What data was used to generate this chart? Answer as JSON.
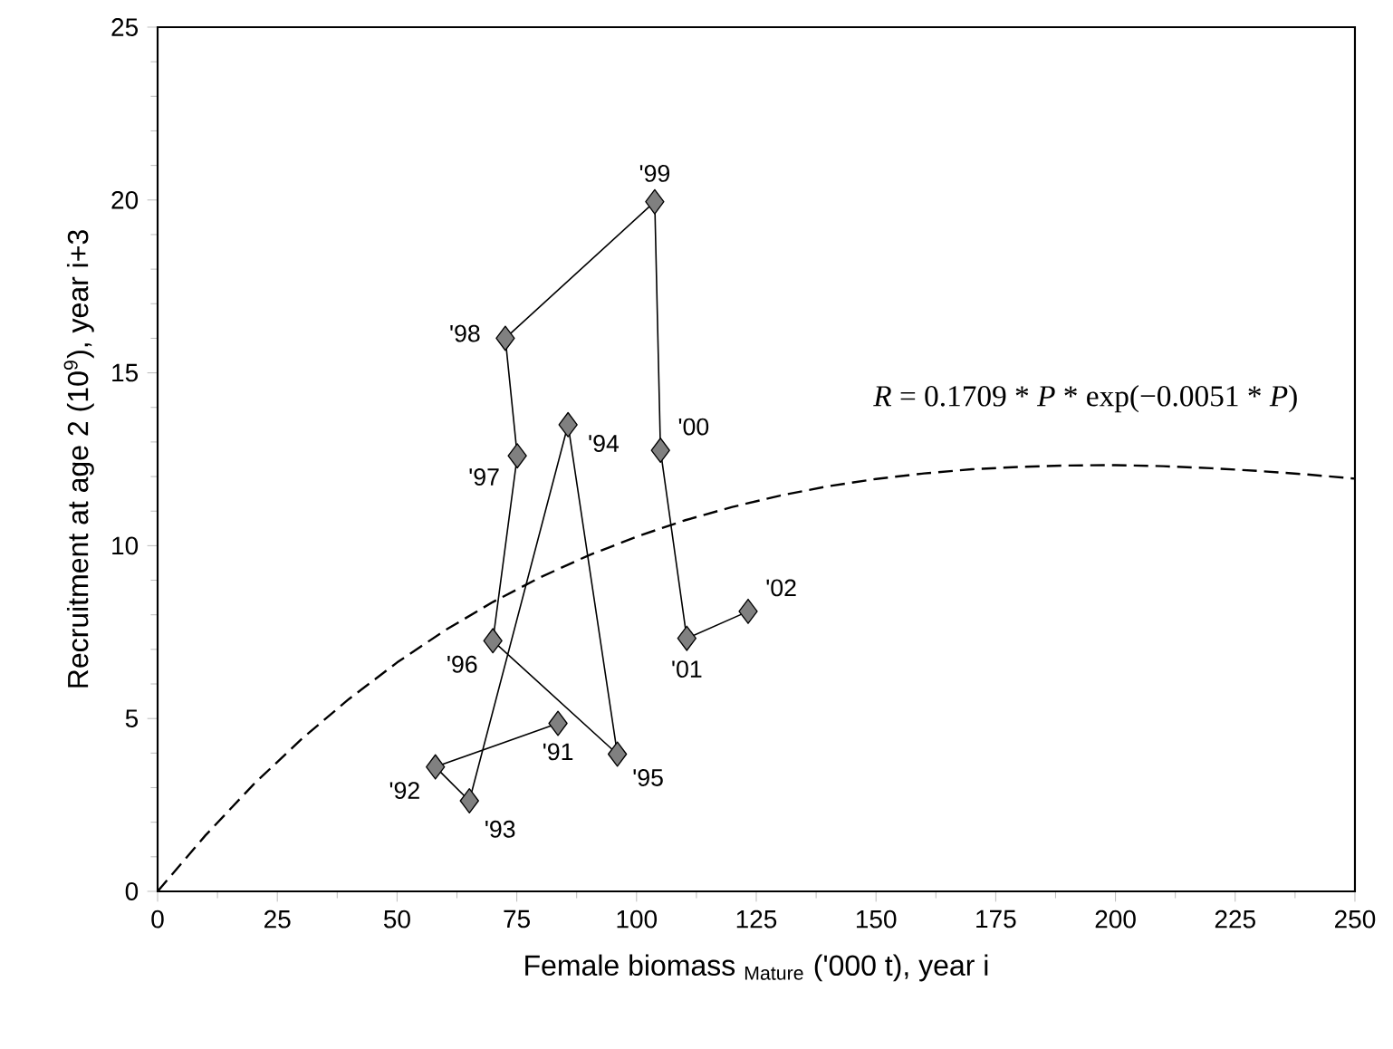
{
  "chart_data": {
    "type": "line",
    "xlabel": "Female biomass $_{Mature}$ ('000 t), year i",
    "ylabel": "Recruitment at age 2 (10$^{9}$), year i+3",
    "xlim": [
      0,
      250
    ],
    "xticks": [
      0,
      25,
      50,
      75,
      100,
      125,
      150,
      175,
      200,
      225,
      250
    ],
    "ylim": [
      0,
      25
    ],
    "yticks": [
      0,
      5,
      10,
      15,
      20,
      25
    ],
    "grid": false,
    "series": [
      {
        "color": "#000000",
        "marker": "diamond",
        "line_style": "solid",
        "x": [
          83.6,
          58.0,
          65.1,
          85.7,
          96.0,
          70.0,
          75.1,
          72.6,
          103.8,
          105.0,
          110.5,
          123.3
        ],
        "values": [
          4.86,
          3.6,
          2.62,
          13.5,
          3.97,
          7.25,
          12.6,
          16.0,
          19.95,
          12.76,
          7.32,
          8.1
        ]
      },
      {
        "color": "#000000",
        "marker": "none",
        "line_style": "dashed",
        "x": [
          0,
          10,
          20,
          30,
          40,
          50,
          60,
          70,
          80,
          90,
          100,
          110,
          120,
          130,
          140,
          150,
          160,
          170,
          180,
          190,
          200,
          210,
          220,
          230,
          240,
          250
        ],
        "values": [
          0,
          1.62,
          3.09,
          4.4,
          5.57,
          6.62,
          7.55,
          8.37,
          9.09,
          9.72,
          10.26,
          10.73,
          11.12,
          11.45,
          11.72,
          11.93,
          12.09,
          12.21,
          12.28,
          12.32,
          12.33,
          12.3,
          12.24,
          12.16,
          12.06,
          11.94
        ]
      }
    ],
    "annotations": [
      {
        "text": "'91",
        "x": 83.6,
        "y": 4.86
      },
      {
        "text": "'92",
        "x": 58.0,
        "y": 3.6
      },
      {
        "text": "'93",
        "x": 65.1,
        "y": 2.62
      },
      {
        "text": "'94",
        "x": 85.7,
        "y": 13.5
      },
      {
        "text": "'95",
        "x": 96.0,
        "y": 3.97
      },
      {
        "text": "'96",
        "x": 70.0,
        "y": 7.25
      },
      {
        "text": "'97",
        "x": 75.1,
        "y": 12.6
      },
      {
        "text": "'98",
        "x": 72.6,
        "y": 16.0
      },
      {
        "text": "'99",
        "x": 103.8,
        "y": 19.95
      },
      {
        "text": "'00",
        "x": 105.0,
        "y": 12.76
      },
      {
        "text": "'01",
        "x": 110.5,
        "y": 7.32
      },
      {
        "text": "'02",
        "x": 123.3,
        "y": 8.1
      },
      "*R* = 0.1709 * *P* * exp(−0.0051 * *P*)"
    ]
  }
}
